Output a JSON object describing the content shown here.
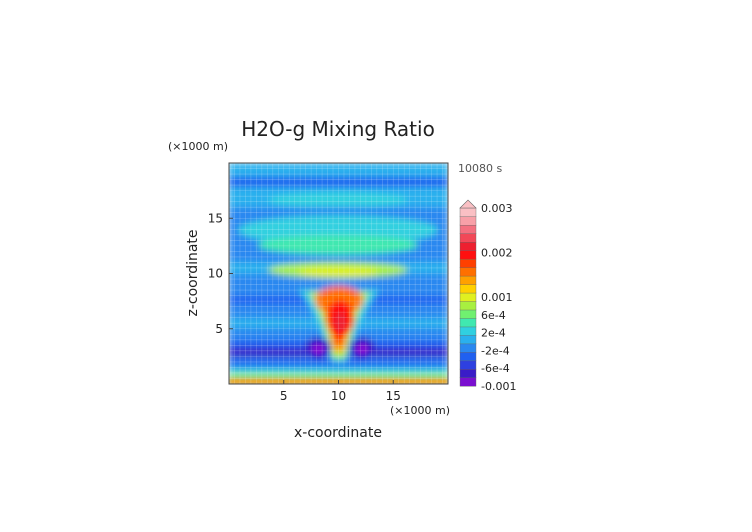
{
  "chart_data": {
    "type": "heatmap",
    "title": "H2O-g Mixing Ratio",
    "time_label": "10080 s",
    "xlabel": "x-coordinate",
    "ylabel": "z-coordinate",
    "x_unit": "(×1000 m)",
    "y_unit": "(×1000 m)",
    "xlim": [
      0,
      20
    ],
    "ylim": [
      0,
      20
    ],
    "x_ticks": [
      {
        "value": 5,
        "label": "5"
      },
      {
        "value": 10,
        "label": "10"
      },
      {
        "value": 15,
        "label": "15"
      }
    ],
    "y_ticks": [
      {
        "value": 5,
        "label": "5"
      },
      {
        "value": 10,
        "label": "10"
      },
      {
        "value": 15,
        "label": "15"
      }
    ],
    "colorbar": {
      "min": -0.001,
      "max": 0.003,
      "labels": [
        {
          "value": 0.003,
          "label": "0.003"
        },
        {
          "value": 0.002,
          "label": "0.002"
        },
        {
          "value": 0.001,
          "label": "0.001"
        },
        {
          "value": 0.0006,
          "label": "6e-4"
        },
        {
          "value": 0.0002,
          "label": "2e-4"
        },
        {
          "value": -0.0002,
          "label": "-2e-4"
        },
        {
          "value": -0.0006,
          "label": "-6e-4"
        },
        {
          "value": -0.001,
          "label": "-0.001"
        }
      ],
      "colors": [
        "#7a0fd0",
        "#3a1cc8",
        "#2e40e0",
        "#2060f0",
        "#2a88f0",
        "#2ab0ee",
        "#30d0e0",
        "#40e8b0",
        "#70f070",
        "#a8f040",
        "#e0f020",
        "#ffd000",
        "#ffa000",
        "#ff7000",
        "#ff4000",
        "#ff1010",
        "#ee2030",
        "#f24858",
        "#f47080",
        "#f8a0a8",
        "#fac0c4"
      ]
    }
  }
}
